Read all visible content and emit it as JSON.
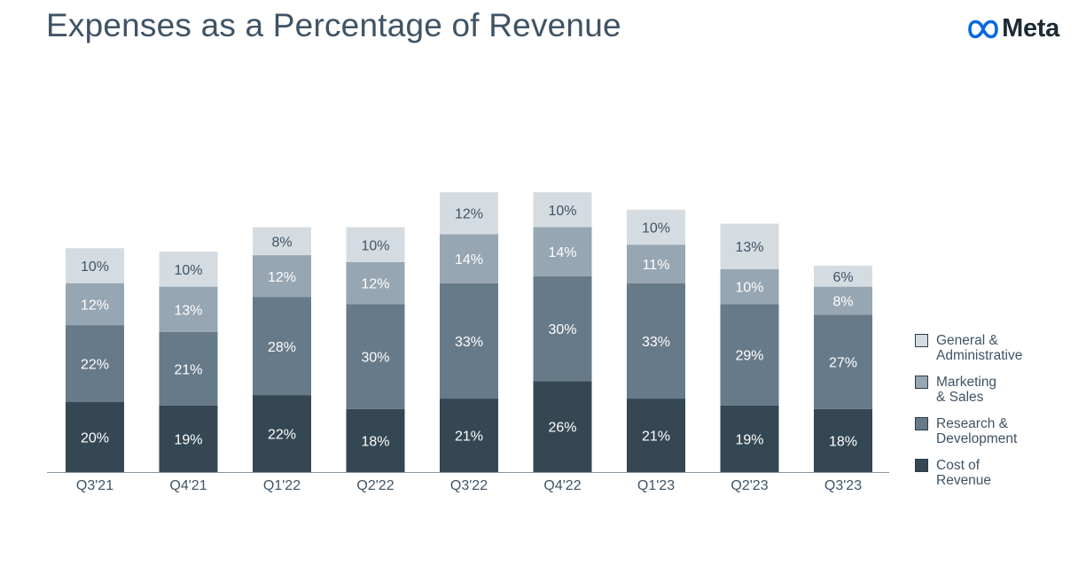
{
  "header": {
    "title": "Expenses as a Percentage of Revenue",
    "logo_text": "Meta",
    "logo_icon": "meta-infinity-icon",
    "logo_color": "#0668e1"
  },
  "chart_data": {
    "type": "bar",
    "stacked": true,
    "title": "Expenses as a Percentage of Revenue",
    "xlabel": "",
    "ylabel": "",
    "ylim": [
      0,
      100
    ],
    "grid": false,
    "legend_position": "right",
    "categories": [
      "Q3'21",
      "Q4'21",
      "Q1'22",
      "Q2'22",
      "Q3'22",
      "Q4'22",
      "Q1'23",
      "Q2'23",
      "Q3'23"
    ],
    "series": [
      {
        "name": "Cost of\nRevenue",
        "color": "#344753",
        "label_color": "#ffffff",
        "values": [
          20,
          19,
          22,
          18,
          21,
          26,
          21,
          19,
          18
        ],
        "labels": [
          "20%",
          "19%",
          "22%",
          "18%",
          "21%",
          "26%",
          "21%",
          "19%",
          "18%"
        ]
      },
      {
        "name": "Research &\nDevelopment",
        "color": "#677a89",
        "label_color": "#ffffff",
        "values": [
          22,
          21,
          28,
          30,
          33,
          30,
          33,
          29,
          27
        ],
        "labels": [
          "22%",
          "21%",
          "28%",
          "30%",
          "33%",
          "30%",
          "33%",
          "29%",
          "27%"
        ]
      },
      {
        "name": "Marketing\n& Sales",
        "color": "#96a6b2",
        "label_color": "#ffffff",
        "values": [
          12,
          13,
          12,
          12,
          14,
          14,
          11,
          10,
          8
        ],
        "labels": [
          "12%",
          "13%",
          "12%",
          "12%",
          "14%",
          "14%",
          "11%",
          "10%",
          "8%"
        ]
      },
      {
        "name": "General &\nAdministrative",
        "color": "#d5dce1",
        "label_color": "#3f5365",
        "values": [
          10,
          10,
          8,
          10,
          12,
          10,
          10,
          13,
          6
        ],
        "labels": [
          "10%",
          "10%",
          "8%",
          "10%",
          "12%",
          "10%",
          "10%",
          "13%",
          "6%"
        ]
      }
    ]
  }
}
